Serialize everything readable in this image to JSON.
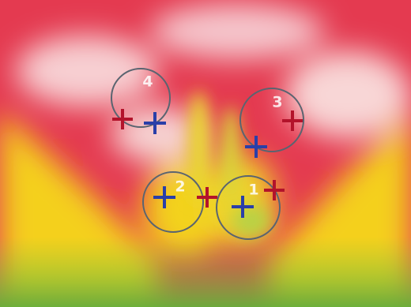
{
  "markers": [
    {
      "label": "1"
    },
    {
      "label": "2"
    },
    {
      "label": "3"
    },
    {
      "label": "4"
    }
  ]
}
